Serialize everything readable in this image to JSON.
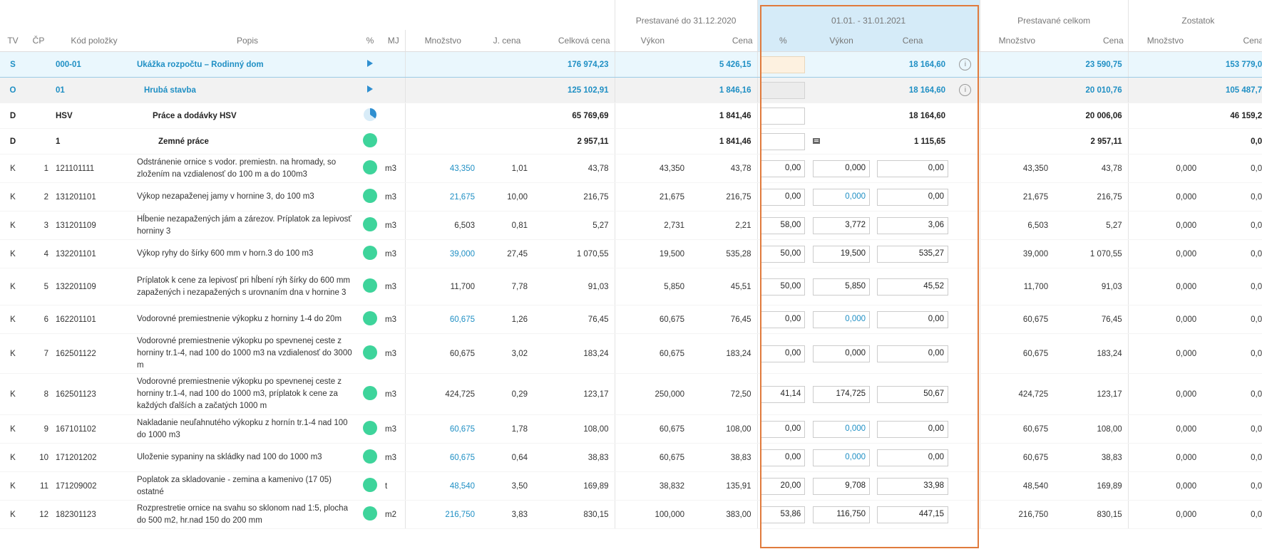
{
  "groups": {
    "prev": "Prestavané do 31.12.2020",
    "period": "01.01. - 31.01.2021",
    "total": "Prestavané celkom",
    "rest": "Zostatok"
  },
  "columns": {
    "tv": "TV",
    "cp": "ČP",
    "code": "Kód položky",
    "desc": "Popis",
    "pct": "%",
    "mj": "MJ",
    "qty": "Množstvo",
    "unit_price": "J. cena",
    "total_price": "Celková cena",
    "prev_vykon": "Výkon",
    "prev_cena": "Cena",
    "per_pct": "%",
    "per_vykon": "Výkon",
    "per_cena": "Cena",
    "tot_qty": "Množstvo",
    "tot_cena": "Cena",
    "rest_qty": "Množstvo",
    "rest_cena": "Cena"
  },
  "summary": {
    "s": {
      "tv": "S",
      "code": "000-01",
      "desc": "Ukážka rozpočtu – Rodinný dom",
      "total": "176 974,23",
      "prev_cena": "5 426,15",
      "per_cena": "18 164,60",
      "tot_cena": "23 590,75",
      "rest_cena": "153 779,0"
    },
    "o": {
      "tv": "O",
      "code": "01",
      "desc": "Hrubá stavba",
      "total": "125 102,91",
      "prev_cena": "1 846,16",
      "per_cena": "18 164,60",
      "tot_cena": "20 010,76",
      "rest_cena": "105 487,7"
    },
    "d1": {
      "tv": "D",
      "code": "HSV",
      "desc": "Práce a dodávky HSV",
      "total": "65 769,69",
      "prev_cena": "1 841,46",
      "per_cena": "18 164,60",
      "tot_cena": "20 006,06",
      "rest_cena": "46 159,2"
    },
    "d2": {
      "tv": "D",
      "code": "1",
      "desc": "Zemné práce",
      "total": "2 957,11",
      "prev_cena": "1 841,46",
      "per_cena": "1 115,65",
      "tot_cena": "2 957,11",
      "rest_cena": "0,0"
    }
  },
  "items": [
    {
      "tv": "K",
      "cp": "1",
      "code": "121101111",
      "desc": "Odstránenie ornice s vodor. premiestn. na hromady, so zložením na vzdialenosť do 100 m a do 100m3",
      "mj": "m3",
      "qty": "43,350",
      "qty_link": true,
      "up": "1,01",
      "tp": "43,78",
      "pv": "43,350",
      "pc": "43,78",
      "pct": "0,00",
      "vy": "0,000",
      "vy_link": false,
      "ce": "0,00",
      "tq": "43,350",
      "tc": "43,78",
      "rq": "0,000",
      "rc": "0,0"
    },
    {
      "tv": "K",
      "cp": "2",
      "code": "131201101",
      "desc": "Výkop nezapaženej jamy v hornine 3, do 100 m3",
      "mj": "m3",
      "qty": "21,675",
      "qty_link": true,
      "up": "10,00",
      "tp": "216,75",
      "pv": "21,675",
      "pc": "216,75",
      "pct": "0,00",
      "vy": "0,000",
      "vy_link": true,
      "ce": "0,00",
      "tq": "21,675",
      "tc": "216,75",
      "rq": "0,000",
      "rc": "0,0"
    },
    {
      "tv": "K",
      "cp": "3",
      "code": "131201109",
      "desc": "Hĺbenie nezapažených jám a zárezov. Príplatok za lepivosť horniny 3",
      "mj": "m3",
      "qty": "6,503",
      "qty_link": false,
      "up": "0,81",
      "tp": "5,27",
      "pv": "2,731",
      "pc": "2,21",
      "pct": "58,00",
      "vy": "3,772",
      "vy_link": false,
      "ce": "3,06",
      "tq": "6,503",
      "tc": "5,27",
      "rq": "0,000",
      "rc": "0,0"
    },
    {
      "tv": "K",
      "cp": "4",
      "code": "132201101",
      "desc": "Výkop ryhy do šírky 600 mm v horn.3 do 100 m3",
      "mj": "m3",
      "qty": "39,000",
      "qty_link": true,
      "up": "27,45",
      "tp": "1 070,55",
      "pv": "19,500",
      "pc": "535,28",
      "pct": "50,00",
      "vy": "19,500",
      "vy_link": false,
      "ce": "535,27",
      "tq": "39,000",
      "tc": "1 070,55",
      "rq": "0,000",
      "rc": "0,0"
    },
    {
      "tv": "K",
      "cp": "5",
      "code": "132201109",
      "desc": "Príplatok k cene za lepivosť pri hĺbení rýh šírky do 600 mm zapažených i nezapažených s urovnaním dna v hornine 3",
      "mj": "m3",
      "qty": "11,700",
      "qty_link": false,
      "up": "7,78",
      "tp": "91,03",
      "pv": "5,850",
      "pc": "45,51",
      "pct": "50,00",
      "vy": "5,850",
      "vy_link": false,
      "ce": "45,52",
      "tq": "11,700",
      "tc": "91,03",
      "rq": "0,000",
      "rc": "0,0"
    },
    {
      "tv": "K",
      "cp": "6",
      "code": "162201101",
      "desc": "Vodorovné premiestnenie výkopku z horniny 1-4 do 20m",
      "mj": "m3",
      "qty": "60,675",
      "qty_link": true,
      "up": "1,26",
      "tp": "76,45",
      "pv": "60,675",
      "pc": "76,45",
      "pct": "0,00",
      "vy": "0,000",
      "vy_link": true,
      "ce": "0,00",
      "tq": "60,675",
      "tc": "76,45",
      "rq": "0,000",
      "rc": "0,0"
    },
    {
      "tv": "K",
      "cp": "7",
      "code": "162501122",
      "desc": "Vodorovné premiestnenie výkopku po spevnenej ceste z horniny tr.1-4, nad 100 do 1000 m3 na vzdialenosť do 3000 m",
      "mj": "m3",
      "qty": "60,675",
      "qty_link": false,
      "up": "3,02",
      "tp": "183,24",
      "pv": "60,675",
      "pc": "183,24",
      "pct": "0,00",
      "vy": "0,000",
      "vy_link": false,
      "ce": "0,00",
      "tq": "60,675",
      "tc": "183,24",
      "rq": "0,000",
      "rc": "0,0"
    },
    {
      "tv": "K",
      "cp": "8",
      "code": "162501123",
      "desc": "Vodorovné premiestnenie výkopku po spevnenej ceste z horniny tr.1-4, nad 100 do 1000 m3, príplatok k cene za každých ďalších a začatých 1000 m",
      "mj": "m3",
      "qty": "424,725",
      "qty_link": false,
      "up": "0,29",
      "tp": "123,17",
      "pv": "250,000",
      "pc": "72,50",
      "pct": "41,14",
      "vy": "174,725",
      "vy_link": false,
      "ce": "50,67",
      "tq": "424,725",
      "tc": "123,17",
      "rq": "0,000",
      "rc": "0,0"
    },
    {
      "tv": "K",
      "cp": "9",
      "code": "167101102",
      "desc": "Nakladanie neuľahnutého výkopku z hornín tr.1-4 nad 100 do 1000 m3",
      "mj": "m3",
      "qty": "60,675",
      "qty_link": true,
      "up": "1,78",
      "tp": "108,00",
      "pv": "60,675",
      "pc": "108,00",
      "pct": "0,00",
      "vy": "0,000",
      "vy_link": true,
      "ce": "0,00",
      "tq": "60,675",
      "tc": "108,00",
      "rq": "0,000",
      "rc": "0,0"
    },
    {
      "tv": "K",
      "cp": "10",
      "code": "171201202",
      "desc": "Uloženie sypaniny na skládky nad 100 do 1000 m3",
      "mj": "m3",
      "qty": "60,675",
      "qty_link": true,
      "up": "0,64",
      "tp": "38,83",
      "pv": "60,675",
      "pc": "38,83",
      "pct": "0,00",
      "vy": "0,000",
      "vy_link": true,
      "ce": "0,00",
      "tq": "60,675",
      "tc": "38,83",
      "rq": "0,000",
      "rc": "0,0"
    },
    {
      "tv": "K",
      "cp": "11",
      "code": "171209002",
      "desc": "Poplatok za skladovanie - zemina a kamenivo (17 05) ostatné",
      "mj": "t",
      "qty": "48,540",
      "qty_link": true,
      "up": "3,50",
      "tp": "169,89",
      "pv": "38,832",
      "pc": "135,91",
      "pct": "20,00",
      "vy": "9,708",
      "vy_link": false,
      "ce": "33,98",
      "tq": "48,540",
      "tc": "169,89",
      "rq": "0,000",
      "rc": "0,0"
    },
    {
      "tv": "K",
      "cp": "12",
      "code": "182301123",
      "desc": "Rozprestretie ornice na svahu so sklonom nad 1:5, plocha do 500 m2, hr.nad 150 do 200 mm",
      "mj": "m2",
      "qty": "216,750",
      "qty_link": true,
      "up": "3,83",
      "tp": "830,15",
      "pv": "100,000",
      "pc": "383,00",
      "pct": "53,86",
      "vy": "116,750",
      "vy_link": false,
      "ce": "447,15",
      "tq": "216,750",
      "tc": "830,15",
      "rq": "0,000",
      "rc": "0,0"
    }
  ],
  "colors": {
    "accent": "#1f8fc4",
    "status_green": "#3ed49b",
    "period_frame": "#e07a3c",
    "period_header": "#d5ebf8"
  },
  "icons": {
    "row_expand": "triangle-play-icon",
    "progress": "pie-icon",
    "status": "green-dot-icon",
    "info": "info-icon",
    "comment": "comment-icon"
  }
}
